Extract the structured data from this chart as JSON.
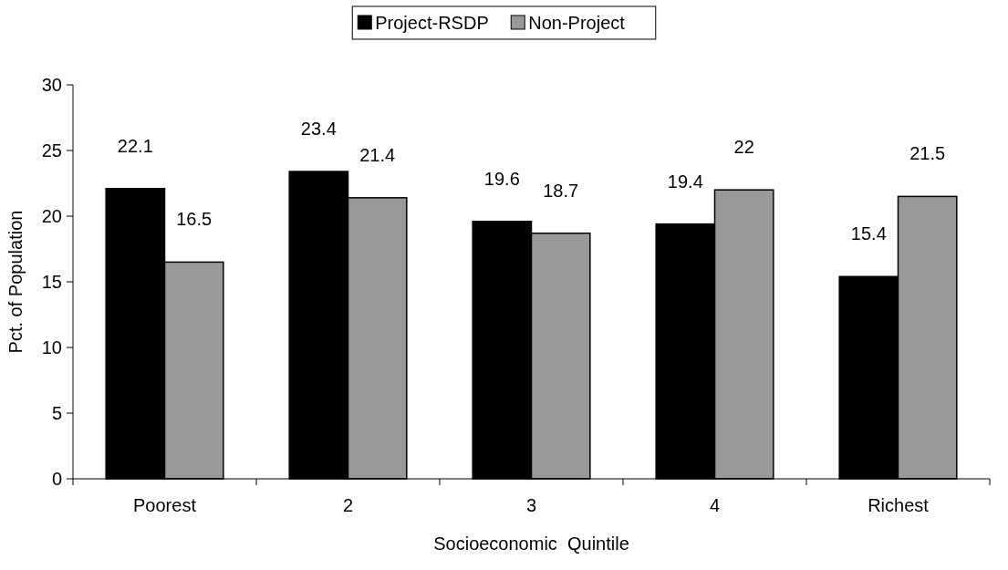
{
  "chart_data": {
    "type": "bar",
    "xlabel": "Socioeconomic  Quintile",
    "ylabel": "Pct. of Population",
    "categories": [
      "Poorest",
      "2",
      "3",
      "4",
      "Richest"
    ],
    "series": [
      {
        "name": "Project-RSDP",
        "color": "#000000",
        "values": [
          22.1,
          23.4,
          19.6,
          19.4,
          15.4
        ]
      },
      {
        "name": "Non-Project",
        "color": "#999999",
        "values": [
          16.5,
          21.4,
          18.7,
          22,
          21.5
        ]
      }
    ],
    "ylim": [
      0,
      30
    ],
    "yticks": [
      0,
      5,
      10,
      15,
      20,
      25,
      30
    ],
    "data_labels": true,
    "legend": "top",
    "grid": false
  }
}
